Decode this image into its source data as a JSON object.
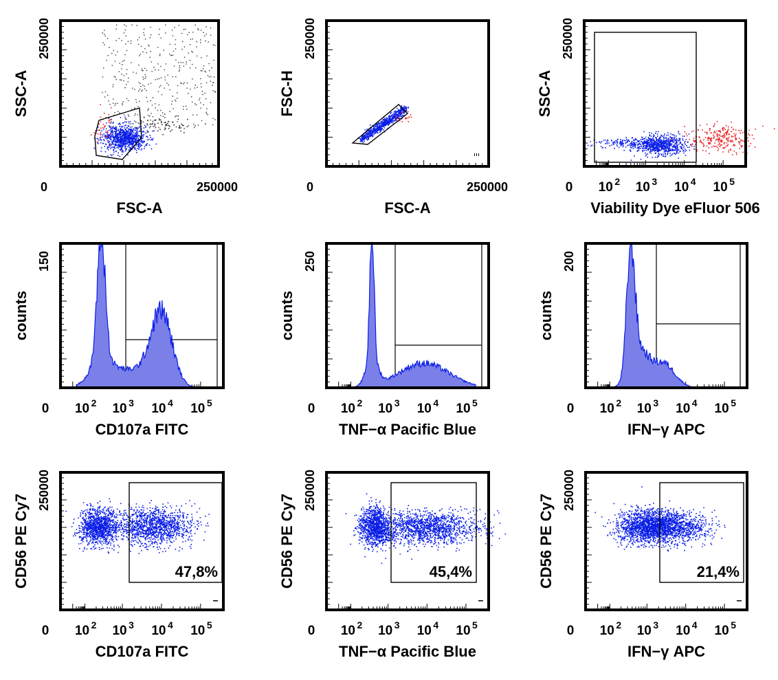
{
  "figure": {
    "colors": {
      "ink": "#000000",
      "gated": "#0a1ee6",
      "excluded": "#e61e1e",
      "ungated": "#333333",
      "fill": "#7b7fe8"
    },
    "panels": [
      {
        "id": "p1",
        "kind": "scatter",
        "scale": "linear",
        "ylabel": "SSC-A",
        "xlabel": "FSC-A",
        "ytick_top": "250000",
        "xticks": [
          "0",
          "250000"
        ],
        "gate": "polygon"
      },
      {
        "id": "p2",
        "kind": "scatter",
        "scale": "linear",
        "ylabel": "FSC-H",
        "xlabel": "FSC-A",
        "ytick_top": "250000",
        "xticks": [
          "0",
          "250000"
        ],
        "gate": "diagonal"
      },
      {
        "id": "p3",
        "kind": "scatter",
        "scale": "log",
        "ylabel": "SSC-A",
        "xlabel": "Viability Dye eFluor 506",
        "ytick_top": "250000",
        "xticks": [
          "0",
          "10",
          "10",
          "10",
          "10"
        ],
        "xexp": [
          "",
          "2",
          "3",
          "4",
          "5"
        ],
        "gate": "rectangle-live"
      },
      {
        "id": "p4",
        "kind": "histogram",
        "scale": "log",
        "ylabel": "counts",
        "xlabel": "CD107a FITC",
        "ytick_top": "150",
        "xticks": [
          "0",
          "10",
          "10",
          "10",
          "10"
        ],
        "xexp": [
          "",
          "2",
          "3",
          "4",
          "5"
        ]
      },
      {
        "id": "p5",
        "kind": "histogram",
        "scale": "log",
        "ylabel": "counts",
        "xlabel": "TNF−α Pacific Blue",
        "ytick_top": "250",
        "xticks": [
          "0",
          "10",
          "10",
          "10",
          "10"
        ],
        "xexp": [
          "",
          "2",
          "3",
          "4",
          "5"
        ]
      },
      {
        "id": "p6",
        "kind": "histogram",
        "scale": "log",
        "ylabel": "counts",
        "xlabel": "IFN−γ APC",
        "ytick_top": "200",
        "xticks": [
          "0",
          "10",
          "10",
          "10",
          "10"
        ],
        "xexp": [
          "",
          "2",
          "3",
          "4",
          "5"
        ]
      },
      {
        "id": "p7",
        "kind": "scatter",
        "scale": "log",
        "ylabel": "CD56 PE Cy7",
        "xlabel": "CD107a FITC",
        "ytick_top": "250000",
        "xticks": [
          "0",
          "10",
          "10",
          "10",
          "10"
        ],
        "xexp": [
          "",
          "2",
          "3",
          "4",
          "5"
        ],
        "gate_label": "47,8%"
      },
      {
        "id": "p8",
        "kind": "scatter",
        "scale": "log",
        "ylabel": "CD56 PE Cy7",
        "xlabel": "TNF−α Pacific Blue",
        "ytick_top": "250000",
        "xticks": [
          "0",
          "10",
          "10",
          "10",
          "10"
        ],
        "xexp": [
          "",
          "2",
          "3",
          "4",
          "5"
        ],
        "gate_label": "45,4%"
      },
      {
        "id": "p9",
        "kind": "scatter",
        "scale": "log",
        "ylabel": "CD56 PE Cy7",
        "xlabel": "IFN−γ APC",
        "ytick_top": "250000",
        "xticks": [
          "0",
          "10",
          "10",
          "10",
          "10"
        ],
        "xexp": [
          "",
          "2",
          "3",
          "4",
          "5"
        ],
        "gate_label": "21,4%"
      }
    ]
  },
  "chart_data": [
    {
      "type": "scatter",
      "xlabel": "FSC-A",
      "ylabel": "SSC-A",
      "xlim": [
        0,
        250000
      ],
      "ylim": [
        0,
        250000
      ],
      "x_scale": "linear",
      "y_scale": "linear"
    },
    {
      "type": "scatter",
      "xlabel": "FSC-A",
      "ylabel": "FSC-H",
      "xlim": [
        0,
        250000
      ],
      "ylim": [
        0,
        250000
      ],
      "x_scale": "linear",
      "y_scale": "linear"
    },
    {
      "type": "scatter",
      "xlabel": "Viability Dye eFluor 506",
      "ylabel": "SSC-A",
      "x_scale": "log",
      "x_ticks": [
        "0",
        "10^2",
        "10^3",
        "10^4",
        "10^5"
      ],
      "ylim": [
        0,
        250000
      ]
    },
    {
      "type": "area",
      "xlabel": "CD107a FITC",
      "ylabel": "counts",
      "x_scale": "log",
      "x_ticks": [
        "0",
        "10^2",
        "10^3",
        "10^4",
        "10^5"
      ],
      "ylim": [
        0,
        150
      ],
      "peaks": [
        {
          "x": 250,
          "counts": 150
        },
        {
          "x": 7000,
          "counts": 90
        }
      ]
    },
    {
      "type": "area",
      "xlabel": "TNF−α Pacific Blue",
      "ylabel": "counts",
      "x_scale": "log",
      "x_ticks": [
        "0",
        "10^2",
        "10^3",
        "10^4",
        "10^5"
      ],
      "ylim": [
        0,
        250
      ],
      "peaks": [
        {
          "x": 450,
          "counts": 250
        },
        {
          "x": 10000,
          "counts": 45
        }
      ]
    },
    {
      "type": "area",
      "xlabel": "IFN−γ APC",
      "ylabel": "counts",
      "x_scale": "log",
      "x_ticks": [
        "0",
        "10^2",
        "10^3",
        "10^4",
        "10^5"
      ],
      "ylim": [
        0,
        200
      ],
      "peaks": [
        {
          "x": 400,
          "counts": 200
        },
        {
          "x": 2500,
          "counts": 45
        }
      ]
    },
    {
      "type": "scatter",
      "xlabel": "CD107a FITC",
      "ylabel": "CD56 PE Cy7",
      "x_scale": "log",
      "x_ticks": [
        "0",
        "10^2",
        "10^3",
        "10^4",
        "10^5"
      ],
      "ylim_top_tick": 250000,
      "gate_percent": "47,8%"
    },
    {
      "type": "scatter",
      "xlabel": "TNF−α Pacific Blue",
      "ylabel": "CD56 PE Cy7",
      "x_scale": "log",
      "x_ticks": [
        "0",
        "10^2",
        "10^3",
        "10^4",
        "10^5"
      ],
      "ylim_top_tick": 250000,
      "gate_percent": "45,4%"
    },
    {
      "type": "scatter",
      "xlabel": "IFN−γ APC",
      "ylabel": "CD56 PE Cy7",
      "x_scale": "log",
      "x_ticks": [
        "0",
        "10^2",
        "10^3",
        "10^4",
        "10^5"
      ],
      "ylim_top_tick": 250000,
      "gate_percent": "21,4%"
    }
  ]
}
